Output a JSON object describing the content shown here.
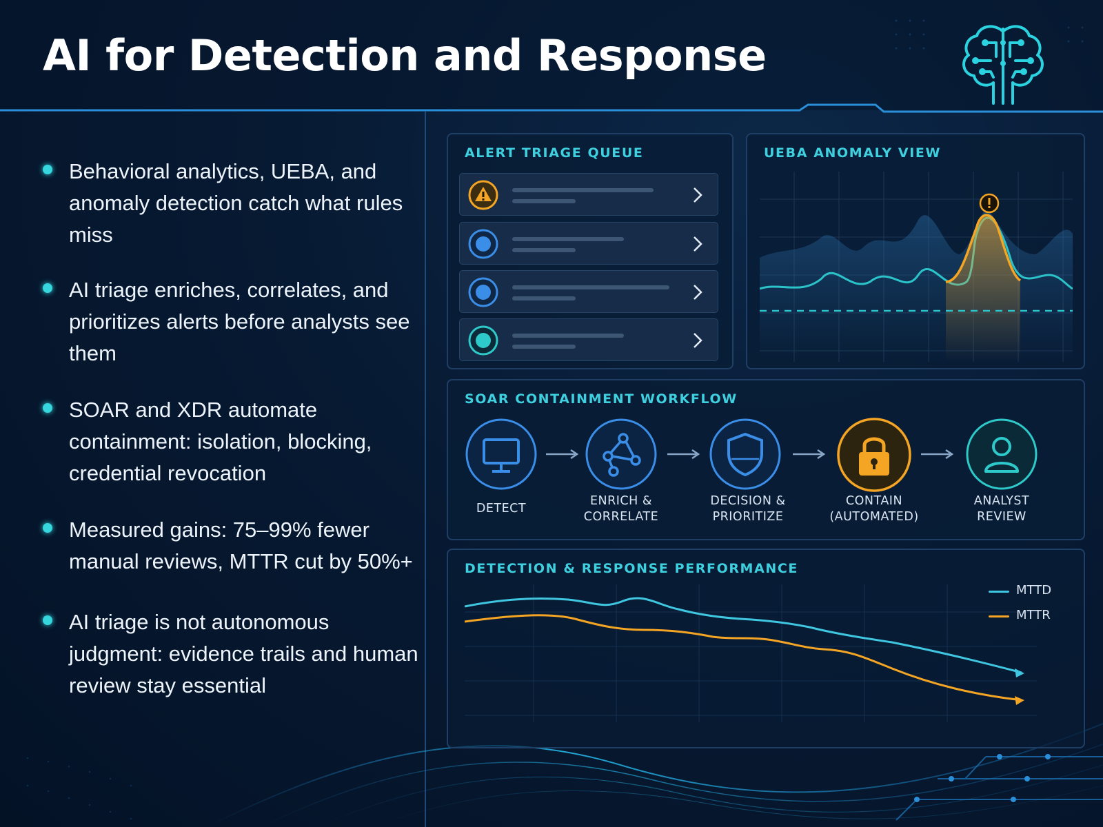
{
  "header": {
    "title": "AI for Detection and Response",
    "logo_icon": "brain-circuit-icon"
  },
  "bullets": [
    {
      "text": "Behavioral analytics, UEBA, and anomaly detection catch what rules miss"
    },
    {
      "text": "AI triage enriches, correlates, and prioritizes alerts before analysts see them"
    },
    {
      "text": "SOAR and XDR automate containment: isolation, blocking, credential revocation"
    },
    {
      "text": "Measured gains: 75–99% fewer manual reviews, MTTR cut by 50%+"
    },
    {
      "text": "AI triage is not autonomous judgment: evidence trails and human review stay essential"
    }
  ],
  "triage": {
    "title": "ALERT TRIAGE QUEUE",
    "rows": [
      {
        "icon": "warning-icon",
        "color": "#f5a524"
      },
      {
        "icon": "status-dot-icon",
        "color": "#3b8ee8"
      },
      {
        "icon": "status-dot-icon",
        "color": "#3b8ee8"
      },
      {
        "icon": "status-dot-icon",
        "color": "#2ec9c9"
      }
    ]
  },
  "ueba": {
    "title": "UEBA ANOMALY VIEW",
    "anomaly_icon": "alert-icon"
  },
  "workflow": {
    "title": "SOAR CONTAINMENT WORKFLOW",
    "steps": [
      {
        "line1": "DETECT",
        "line2": "",
        "icon": "monitor-icon",
        "color": "#3b8ee8"
      },
      {
        "line1": "ENRICH &",
        "line2": "CORRELATE",
        "icon": "network-icon",
        "color": "#3b8ee8"
      },
      {
        "line1": "DECISION &",
        "line2": "PRIORITIZE",
        "icon": "shield-icon",
        "color": "#3b8ee8"
      },
      {
        "line1": "CONTAIN",
        "line2": "(AUTOMATED)",
        "icon": "lock-icon",
        "color": "#f5a524"
      },
      {
        "line1": "ANALYST",
        "line2": "REVIEW",
        "icon": "user-icon",
        "color": "#2ec9c9"
      }
    ]
  },
  "performance": {
    "title": "DETECTION & RESPONSE PERFORMANCE",
    "legend": [
      {
        "name": "MTTD",
        "color": "#3fc6e0"
      },
      {
        "name": "MTTR",
        "color": "#f5a524"
      }
    ]
  },
  "colors": {
    "accent_cyan": "#3fd0e0",
    "accent_orange": "#f5a524",
    "accent_blue": "#3b8ee8"
  }
}
